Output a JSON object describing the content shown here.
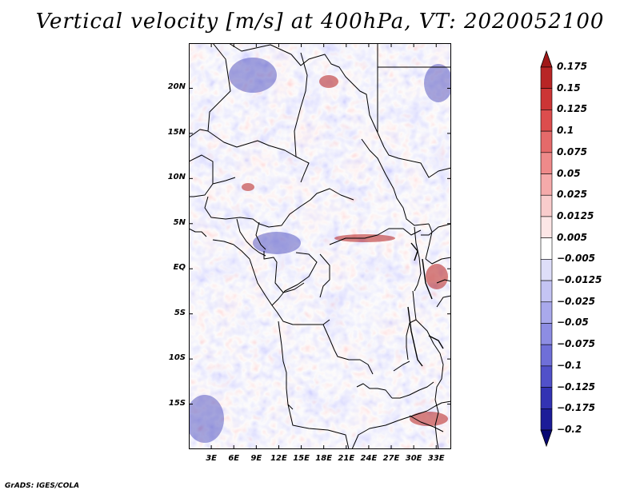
{
  "title": "Vertical velocity [m/s] at 400hPa, VT: 2020052100",
  "footer": "GrADS: IGES/COLA",
  "map": {
    "lon_range": [
      0,
      35
    ],
    "lat_range": [
      -20,
      25
    ],
    "y_ticks": [
      {
        "label": "20N",
        "lat": 20
      },
      {
        "label": "15N",
        "lat": 15
      },
      {
        "label": "10N",
        "lat": 10
      },
      {
        "label": "5N",
        "lat": 5
      },
      {
        "label": "EQ",
        "lat": 0
      },
      {
        "label": "5S",
        "lat": -5
      },
      {
        "label": "10S",
        "lat": -10
      },
      {
        "label": "15S",
        "lat": -15
      }
    ],
    "x_ticks": [
      {
        "label": "3E",
        "lon": 3
      },
      {
        "label": "6E",
        "lon": 6
      },
      {
        "label": "9E",
        "lon": 9
      },
      {
        "label": "12E",
        "lon": 12
      },
      {
        "label": "15E",
        "lon": 15
      },
      {
        "label": "18E",
        "lon": 18
      },
      {
        "label": "21E",
        "lon": 21
      },
      {
        "label": "24E",
        "lon": 24
      },
      {
        "label": "27E",
        "lon": 27
      },
      {
        "label": "30E",
        "lon": 30
      },
      {
        "label": "33E",
        "lon": 33
      }
    ]
  },
  "colorbar": {
    "labels": [
      "0.175",
      "0.15",
      "0.125",
      "0.1",
      "0.075",
      "0.05",
      "0.025",
      "0.0125",
      "0.005",
      "−0.005",
      "−0.0125",
      "−0.025",
      "−0.05",
      "−0.075",
      "−0.1",
      "−0.125",
      "−0.175",
      "−0.2"
    ],
    "colors": [
      "#a01818",
      "#b82525",
      "#cc3535",
      "#dc4d4d",
      "#e56a6a",
      "#ee8a8a",
      "#f5aaaa",
      "#f9cccc",
      "#fce6e6",
      "#ffffff",
      "#dedef9",
      "#c4c4f3",
      "#a9a9ec",
      "#8d8de3",
      "#6f6fd8",
      "#5151c9",
      "#3333b3",
      "#1c1c98",
      "#080873"
    ]
  }
}
